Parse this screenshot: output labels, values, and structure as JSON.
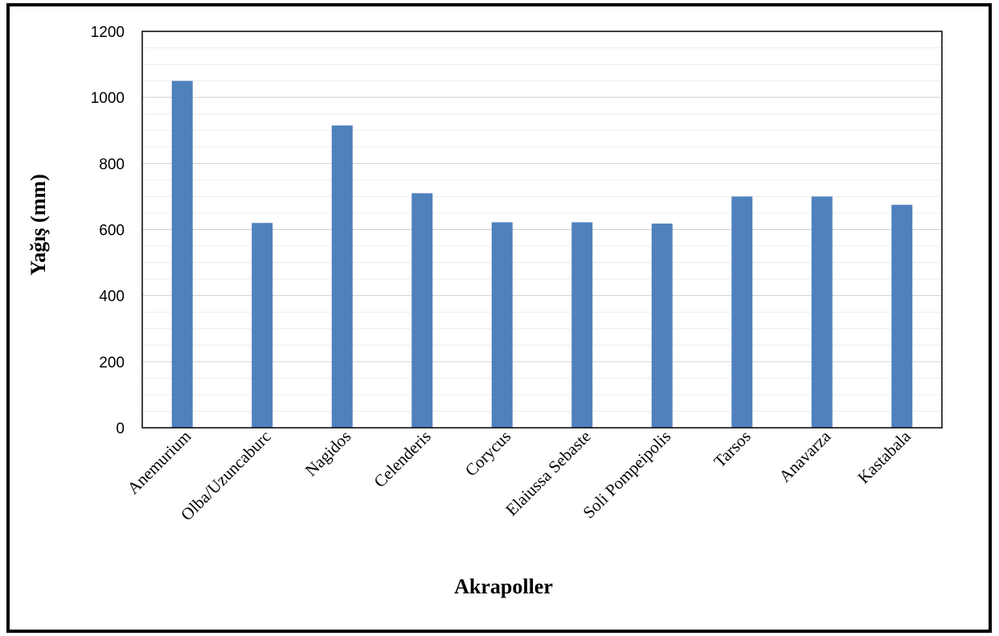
{
  "chart_data": {
    "type": "bar",
    "categories": [
      "Anemurium",
      "Olba/Uzuncaburc",
      "Nagidos",
      "Celenderis",
      "Corycus",
      "Elaiussa Sebaste",
      "Soli Pompeipolis",
      "Tarsos",
      "Anavarza",
      "Kastabala"
    ],
    "values": [
      1050,
      620,
      915,
      710,
      622,
      622,
      618,
      700,
      700,
      675
    ],
    "xlabel": "Akrapoller",
    "ylabel": "Yağış  (mm)",
    "ylim": [
      0,
      1200
    ],
    "yticks": [
      0,
      200,
      400,
      600,
      800,
      1000,
      1200
    ],
    "grid": true,
    "minor_grid": true,
    "bar_color": "#4f81bd",
    "legend": "none"
  }
}
